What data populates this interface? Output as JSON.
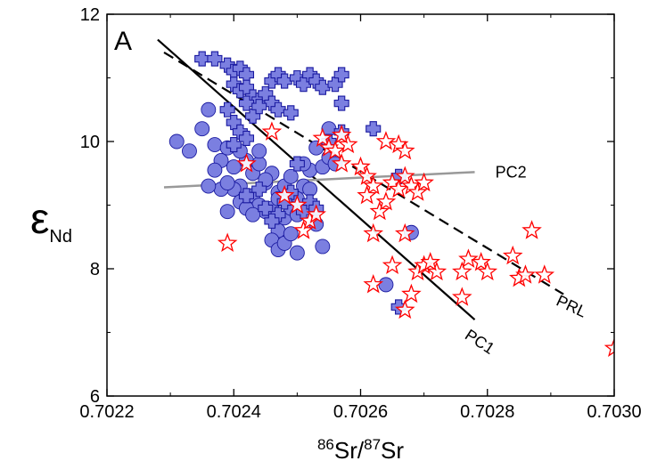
{
  "chart_data": {
    "type": "scatter",
    "panel_label": "A",
    "xlabel": {
      "pre_sup": "86",
      "mid": "Sr/",
      "post_sup": "87",
      "tail": "Sr"
    },
    "ylabel": {
      "main": "ε",
      "sub": "Nd"
    },
    "xlim": [
      0.7022,
      0.703
    ],
    "ylim": [
      6,
      12
    ],
    "xticks": [
      0.7022,
      0.7024,
      0.7026,
      0.7028,
      0.703
    ],
    "xtick_labels": [
      "0.7022",
      "0.7024",
      "0.7026",
      "0.7028",
      "0.7030"
    ],
    "yticks": [
      6,
      8,
      10,
      12
    ],
    "ytick_labels": [
      "6",
      "8",
      "10",
      "12"
    ],
    "grid": false,
    "colors": {
      "circle": "#7b7fe0",
      "cross": "#7b7fe0",
      "star": "#ff0000",
      "pc2": "#999999"
    },
    "lines": [
      {
        "name": "PC1",
        "style": "solid",
        "color": "#000000",
        "x": [
          0.70228,
          0.70278
        ],
        "y": [
          11.6,
          7.2
        ]
      },
      {
        "name": "PRL",
        "style": "dashed",
        "color": "#000000",
        "x": [
          0.70229,
          0.70292
        ],
        "y": [
          11.4,
          7.6
        ]
      },
      {
        "name": "PC2",
        "style": "solid",
        "color": "#999999",
        "x": [
          0.70229,
          0.70278
        ],
        "y": [
          9.28,
          9.52
        ]
      }
    ],
    "series": [
      {
        "marker": "circle",
        "points": [
          [
            0.70231,
            10.0
          ],
          [
            0.70233,
            9.85
          ],
          [
            0.70235,
            10.2
          ],
          [
            0.70236,
            10.5
          ],
          [
            0.70237,
            9.95
          ],
          [
            0.70238,
            9.7
          ],
          [
            0.70237,
            9.55
          ],
          [
            0.70239,
            9.9
          ],
          [
            0.7024,
            9.6
          ],
          [
            0.70241,
            9.3
          ],
          [
            0.70242,
            9.7
          ],
          [
            0.70243,
            9.5
          ],
          [
            0.70244,
            9.65
          ],
          [
            0.70245,
            9.35
          ],
          [
            0.70246,
            9.5
          ],
          [
            0.70247,
            9.2
          ],
          [
            0.7024,
            9.25
          ],
          [
            0.70241,
            9.05
          ],
          [
            0.70243,
            9.15
          ],
          [
            0.70244,
            9.0
          ],
          [
            0.70245,
            8.9
          ],
          [
            0.70246,
            8.95
          ],
          [
            0.70247,
            9.1
          ],
          [
            0.70248,
            9.3
          ],
          [
            0.70249,
            9.45
          ],
          [
            0.7025,
            9.1
          ],
          [
            0.70251,
            9.3
          ],
          [
            0.70248,
            8.8
          ],
          [
            0.70249,
            8.95
          ],
          [
            0.7025,
            8.85
          ],
          [
            0.70247,
            8.6
          ],
          [
            0.70246,
            8.45
          ],
          [
            0.70247,
            8.3
          ],
          [
            0.70248,
            8.4
          ],
          [
            0.70249,
            8.55
          ],
          [
            0.7025,
            8.25
          ],
          [
            0.70252,
            9.55
          ],
          [
            0.70253,
            9.9
          ],
          [
            0.70254,
            9.6
          ],
          [
            0.70255,
            9.75
          ],
          [
            0.70256,
            9.65
          ],
          [
            0.70255,
            10.2
          ],
          [
            0.70254,
            8.35
          ],
          [
            0.70253,
            8.7
          ],
          [
            0.70238,
            9.25
          ],
          [
            0.70239,
            8.9
          ],
          [
            0.70242,
            8.95
          ],
          [
            0.70243,
            8.85
          ],
          [
            0.70268,
            8.57
          ],
          [
            0.70264,
            7.75
          ],
          [
            0.70236,
            9.3
          ],
          [
            0.70239,
            9.35
          ],
          [
            0.70241,
            9.85
          ],
          [
            0.70244,
            9.85
          ],
          [
            0.70245,
            9.4
          ],
          [
            0.70252,
            9.25
          ],
          [
            0.70251,
            9.65
          ]
        ]
      },
      {
        "marker": "cross",
        "points": [
          [
            0.70235,
            11.3
          ],
          [
            0.70237,
            11.3
          ],
          [
            0.70239,
            11.2
          ],
          [
            0.7024,
            11.1
          ],
          [
            0.70241,
            11.15
          ],
          [
            0.70242,
            11.05
          ],
          [
            0.7024,
            10.9
          ],
          [
            0.70241,
            10.8
          ],
          [
            0.70242,
            10.85
          ],
          [
            0.70243,
            10.7
          ],
          [
            0.70244,
            10.65
          ],
          [
            0.70245,
            10.75
          ],
          [
            0.70246,
            10.6
          ],
          [
            0.70247,
            10.5
          ],
          [
            0.70246,
            10.95
          ],
          [
            0.70247,
            11.05
          ],
          [
            0.70248,
            10.95
          ],
          [
            0.7025,
            11.0
          ],
          [
            0.70251,
            10.9
          ],
          [
            0.70252,
            11.05
          ],
          [
            0.70253,
            10.95
          ],
          [
            0.70254,
            10.85
          ],
          [
            0.70256,
            10.9
          ],
          [
            0.70257,
            11.05
          ],
          [
            0.70239,
            10.5
          ],
          [
            0.7024,
            10.3
          ],
          [
            0.70241,
            10.15
          ],
          [
            0.70242,
            10.05
          ],
          [
            0.7024,
            9.95
          ],
          [
            0.70243,
            10.4
          ],
          [
            0.70249,
            10.45
          ],
          [
            0.70257,
            10.6
          ],
          [
            0.70255,
            10.0
          ],
          [
            0.70257,
            10.15
          ],
          [
            0.70262,
            10.2
          ],
          [
            0.70266,
            9.45
          ],
          [
            0.7025,
            9.65
          ],
          [
            0.70249,
            9.2
          ],
          [
            0.70248,
            9.05
          ],
          [
            0.70247,
            8.85
          ],
          [
            0.70246,
            8.75
          ],
          [
            0.70245,
            8.95
          ],
          [
            0.70251,
            8.9
          ],
          [
            0.70252,
            9.05
          ],
          [
            0.70253,
            8.95
          ],
          [
            0.70242,
            9.15
          ],
          [
            0.70244,
            9.25
          ],
          [
            0.70266,
            7.4
          ],
          [
            0.70242,
            10.6
          ],
          [
            0.70244,
            10.55
          ]
        ]
      },
      {
        "marker": "star",
        "points": [
          [
            0.70239,
            8.4
          ],
          [
            0.70242,
            9.65
          ],
          [
            0.70246,
            10.15
          ],
          [
            0.70248,
            9.15
          ],
          [
            0.7025,
            9.0
          ],
          [
            0.70251,
            8.6
          ],
          [
            0.70252,
            8.75
          ],
          [
            0.70253,
            8.85
          ],
          [
            0.70254,
            10.05
          ],
          [
            0.70255,
            9.9
          ],
          [
            0.70256,
            9.85
          ],
          [
            0.70257,
            9.65
          ],
          [
            0.70258,
            9.95
          ],
          [
            0.70257,
            10.1
          ],
          [
            0.7026,
            9.6
          ],
          [
            0.70261,
            9.45
          ],
          [
            0.70262,
            9.3
          ],
          [
            0.70261,
            9.15
          ],
          [
            0.70262,
            8.55
          ],
          [
            0.70263,
            8.9
          ],
          [
            0.70264,
            9.05
          ],
          [
            0.70265,
            9.35
          ],
          [
            0.70266,
            9.25
          ],
          [
            0.70267,
            9.45
          ],
          [
            0.70268,
            9.3
          ],
          [
            0.70269,
            9.2
          ],
          [
            0.7027,
            9.35
          ],
          [
            0.70266,
            9.95
          ],
          [
            0.70267,
            9.85
          ],
          [
            0.70264,
            10.0
          ],
          [
            0.70262,
            7.75
          ],
          [
            0.70265,
            8.05
          ],
          [
            0.70267,
            7.35
          ],
          [
            0.70268,
            7.6
          ],
          [
            0.70269,
            7.95
          ],
          [
            0.7027,
            8.05
          ],
          [
            0.70272,
            7.95
          ],
          [
            0.70271,
            8.1
          ],
          [
            0.70276,
            7.95
          ],
          [
            0.70277,
            8.15
          ],
          [
            0.70279,
            8.1
          ],
          [
            0.7028,
            7.95
          ],
          [
            0.70284,
            8.2
          ],
          [
            0.70285,
            7.85
          ],
          [
            0.70286,
            7.9
          ],
          [
            0.70289,
            7.9
          ],
          [
            0.70287,
            8.6
          ],
          [
            0.70276,
            7.55
          ],
          [
            0.703,
            6.75
          ],
          [
            0.70267,
            8.55
          ]
        ]
      }
    ],
    "annotations": [
      "PC2",
      "PRL",
      "PC1"
    ]
  }
}
